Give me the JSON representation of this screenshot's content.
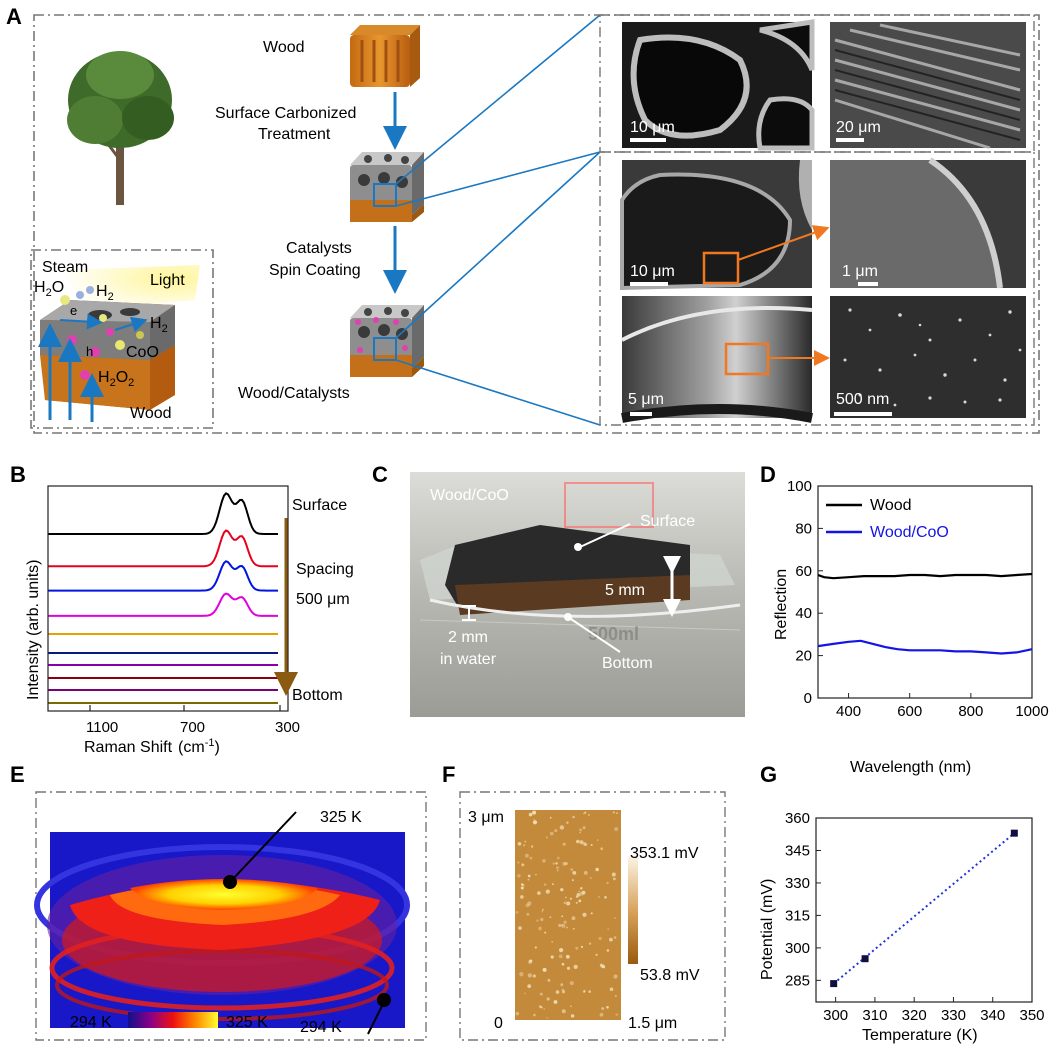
{
  "panel_labels": {
    "a": "A",
    "b": "B",
    "c": "C",
    "d": "D",
    "e": "E",
    "f": "F",
    "g": "G"
  },
  "panel_a": {
    "wood": "Wood",
    "step1_line1": "Surface Carbonized",
    "step1_line2": "Treatment",
    "step2_line1": "Catalysts",
    "step2_line2": "Spin Coating",
    "wood_catalysts": "Wood/Catalysts",
    "inset": {
      "steam": "Steam",
      "h2o_base": "H",
      "h2o_sub": "2",
      "h2o_end": "O",
      "light": "Light",
      "h2_a_base": "H",
      "h2_a_sub": "2",
      "h2_b_base": "H",
      "h2_b_sub": "2",
      "electron": "e",
      "hole": "h",
      "coo": "CoO",
      "h2o2_base": "H",
      "h2o2_sub1": "2",
      "h2o2_mid": "O",
      "h2o2_sub2": "2",
      "wood": "Wood"
    },
    "sem_scalebars": [
      "10 μm",
      "20 μm",
      "10 μm",
      "1 μm",
      "5 μm",
      "500 nm"
    ]
  },
  "chart_data": [
    {
      "panel": "B",
      "type": "line",
      "xlabel": "Raman Shift",
      "xlabel_unit_base": "(cm",
      "xlabel_unit_sup": "-1",
      "xlabel_unit_end": ")",
      "ylabel": "Intensity (arb. units)",
      "x_ticks": [
        "1100",
        "700",
        "300"
      ],
      "annotations": {
        "top": "Surface",
        "middle1": "Spacing",
        "middle2": "500 μm",
        "bottom": "Bottom"
      },
      "series_colors": [
        "#000000",
        "#e8001c",
        "#0016e0",
        "#e000e0",
        "#e8a000",
        "#0a1a7a",
        "#8a00a8",
        "#8a0010",
        "#7a0078",
        "#7a6a00"
      ],
      "peak_heights": [
        1.0,
        0.88,
        0.72,
        0.55,
        0,
        0,
        0,
        0,
        0,
        0
      ]
    },
    {
      "panel": "D",
      "type": "line",
      "xlabel": "Wavelength (nm)",
      "ylabel": "Reflection",
      "xlim": [
        300,
        1000
      ],
      "ylim": [
        0,
        100
      ],
      "x_ticks": [
        400,
        600,
        800,
        1000
      ],
      "y_ticks": [
        0,
        20,
        40,
        60,
        80,
        100
      ],
      "legend_position": "top-left",
      "series": [
        {
          "name": "Wood",
          "color": "#000000",
          "x": [
            300,
            320,
            350,
            400,
            450,
            500,
            550,
            600,
            650,
            700,
            750,
            800,
            850,
            900,
            950,
            1000
          ],
          "values": [
            58,
            57,
            56.5,
            57,
            57.5,
            57.5,
            57.5,
            58,
            58,
            57.5,
            58,
            58,
            58,
            57.5,
            58,
            58.5
          ]
        },
        {
          "name": "Wood/CoO",
          "color": "#1414e6",
          "x": [
            300,
            350,
            400,
            440,
            480,
            520,
            560,
            600,
            650,
            700,
            750,
            800,
            850,
            900,
            950,
            1000
          ],
          "values": [
            24.5,
            25.5,
            26.5,
            27,
            25.5,
            24,
            23,
            22.5,
            22.5,
            22.5,
            22,
            22,
            21.5,
            21,
            21.5,
            23
          ]
        }
      ]
    },
    {
      "panel": "G",
      "type": "scatter",
      "xlabel": "Temperature (K)",
      "ylabel": "Potential (mV)",
      "xlim": [
        295,
        350
      ],
      "ylim": [
        275,
        360
      ],
      "x_ticks": [
        300,
        310,
        320,
        330,
        340,
        350
      ],
      "y_ticks": [
        285,
        300,
        315,
        330,
        345,
        360
      ],
      "fit_line_color": "#2233dd",
      "series": [
        {
          "x": [
            299.5,
            307.5,
            345.5
          ],
          "values": [
            283.5,
            295,
            353
          ]
        }
      ]
    }
  ],
  "panel_c": {
    "sample": "Wood/CoO",
    "surface": "Surface",
    "thickness": "5 mm",
    "depth_value": "2 mm",
    "depth_label": "in water",
    "bottom": "Bottom",
    "beaker_mark": "500ml"
  },
  "panel_e": {
    "hot_label": "325 K",
    "cold_label": "294 K",
    "scale_min": "294 K",
    "scale_max": "325 K"
  },
  "panel_f": {
    "y_top": "3 μm",
    "y_zero": "0",
    "x_right": "1.5 μm",
    "scale_max": "353.1 mV",
    "scale_min": "53.8 mV"
  }
}
